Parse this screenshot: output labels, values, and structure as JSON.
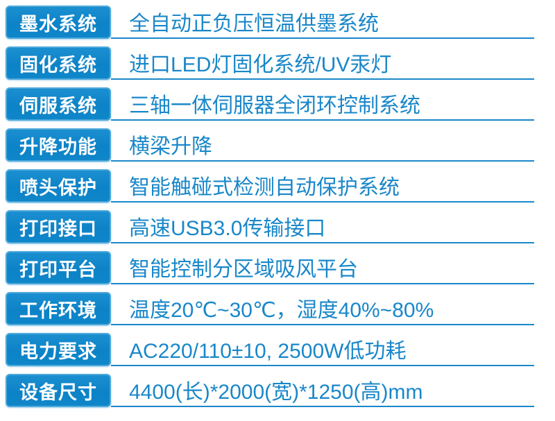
{
  "table": {
    "title": "printer-specification-table",
    "colors": {
      "label_fill": "#0f86c9",
      "label_border": "#4fa9db",
      "label_text": "#ffffff",
      "value_text": "#1987c9",
      "underline": "#1987c9",
      "background": "#ffffff"
    },
    "rows": [
      {
        "label": "墨水系统",
        "value": "全自动正负压恒温供墨系统"
      },
      {
        "label": "固化系统",
        "value": "进口LED灯固化系统/UV汞灯"
      },
      {
        "label": "伺服系统",
        "value": "三轴一体伺服器全闭环控制系统"
      },
      {
        "label": "升降功能",
        "value": "横梁升降"
      },
      {
        "label": "喷头保护",
        "value": "智能触碰式检测自动保护系统"
      },
      {
        "label": "打印接口",
        "value": "高速USB3.0传输接口"
      },
      {
        "label": "打印平台",
        "value": "智能控制分区域吸风平台"
      },
      {
        "label": "工作环境",
        "value": "温度20℃~30℃，湿度40%~80%"
      },
      {
        "label": "电力要求",
        "value": "AC220/110±10, 2500W低功耗"
      },
      {
        "label": "设备尺寸",
        "value": "4400(长)*2000(宽)*1250(高)mm"
      }
    ]
  }
}
